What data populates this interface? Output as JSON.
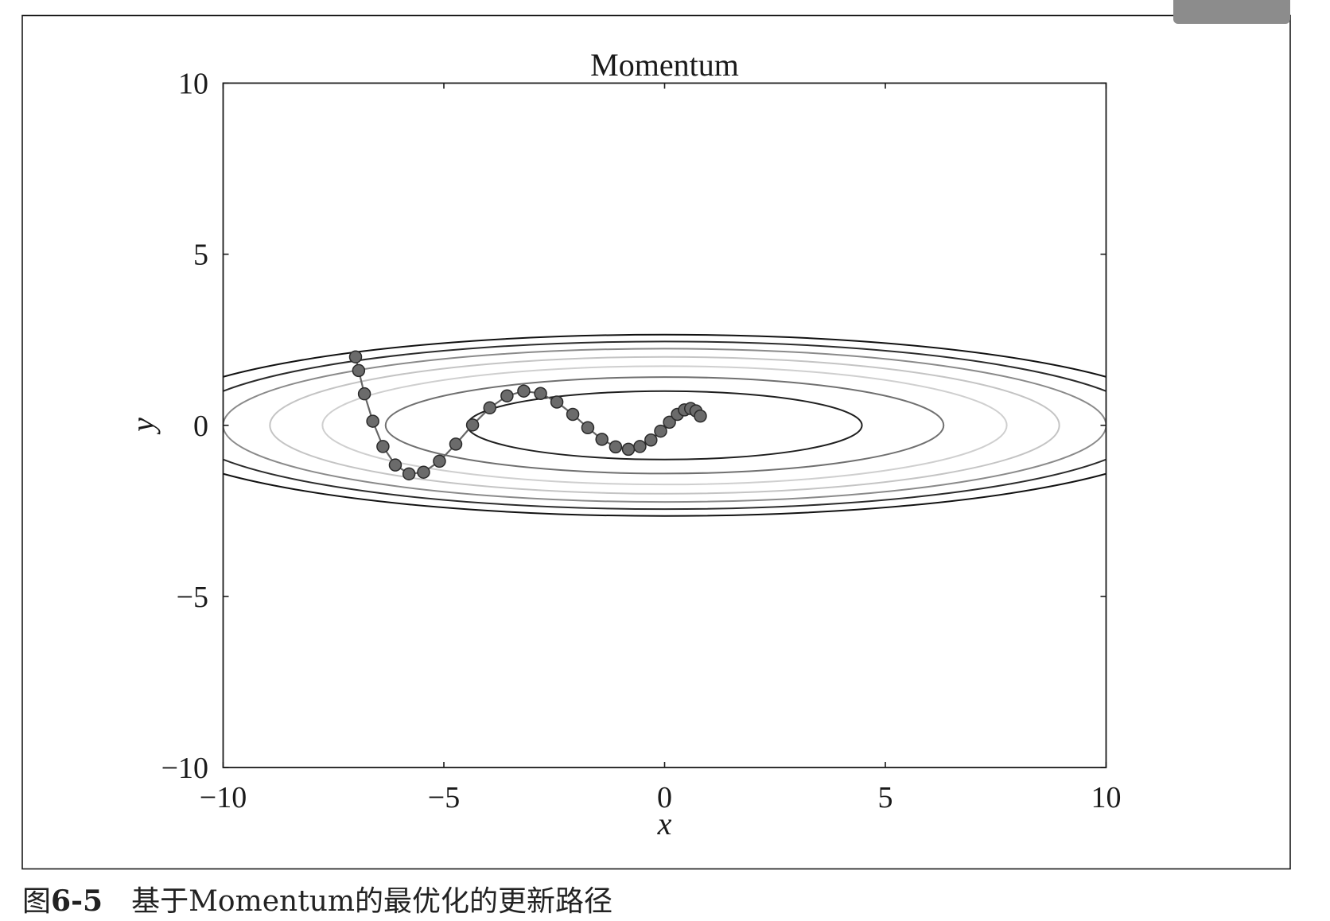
{
  "colors": {
    "frame": "#1a1a1a",
    "axes": "#1a1a1a",
    "path_line": "#666666",
    "marker_fill": "#6b6b6b",
    "marker_edge": "#2a2a2a",
    "tab": "#8c8c8c"
  },
  "chart_data": {
    "type": "line",
    "title": "Momentum",
    "xlabel": "x",
    "ylabel": "y",
    "xlim": [
      -10,
      10
    ],
    "ylim": [
      -10,
      10
    ],
    "grid": false,
    "xticks": [
      -10,
      -5,
      0,
      5,
      10
    ],
    "xtick_labels": [
      "−10",
      "−5",
      "0",
      "5",
      "10"
    ],
    "yticks": [
      10,
      5,
      0,
      -5,
      -10
    ],
    "ytick_labels": [
      "10",
      "5",
      "0",
      "−5",
      "−10"
    ],
    "series": [
      {
        "color": "#666666",
        "x": [
          -7.0,
          -6.93,
          -6.8,
          -6.61,
          -6.38,
          -6.1,
          -5.79,
          -5.46,
          -5.1,
          -4.73,
          -4.35,
          -3.96,
          -3.57,
          -3.19,
          -2.81,
          -2.44,
          -2.08,
          -1.74,
          -1.42,
          -1.11,
          -0.82,
          -0.56,
          -0.31,
          -0.09,
          0.11,
          0.29,
          0.45,
          0.59,
          0.71,
          0.81
        ],
        "y": [
          2.0,
          1.6,
          0.92,
          0.12,
          -0.62,
          -1.16,
          -1.42,
          -1.37,
          -1.05,
          -0.55,
          0.01,
          0.51,
          0.86,
          1.0,
          0.93,
          0.68,
          0.32,
          -0.07,
          -0.41,
          -0.63,
          -0.7,
          -0.62,
          -0.43,
          -0.17,
          0.09,
          0.32,
          0.45,
          0.49,
          0.42,
          0.27
        ]
      }
    ],
    "contours": [
      {
        "rx": 4.47,
        "ry": 1.0,
        "color": "#1f1f1f"
      },
      {
        "rx": 6.32,
        "ry": 1.41,
        "color": "#707070"
      },
      {
        "rx": 7.75,
        "ry": 1.73,
        "color": "#cfcfcf"
      },
      {
        "rx": 8.94,
        "ry": 2.0,
        "color": "#c4c4c4"
      },
      {
        "rx": 10.0,
        "ry": 2.24,
        "color": "#8a8a8a"
      },
      {
        "rx": 10.95,
        "ry": 2.45,
        "color": "#2b2b2b"
      },
      {
        "rx": 11.83,
        "ry": 2.65,
        "color": "#111111"
      }
    ]
  },
  "caption": {
    "label": "图",
    "number": "6-5",
    "text": "基于Momentum的最优化的更新路径"
  }
}
